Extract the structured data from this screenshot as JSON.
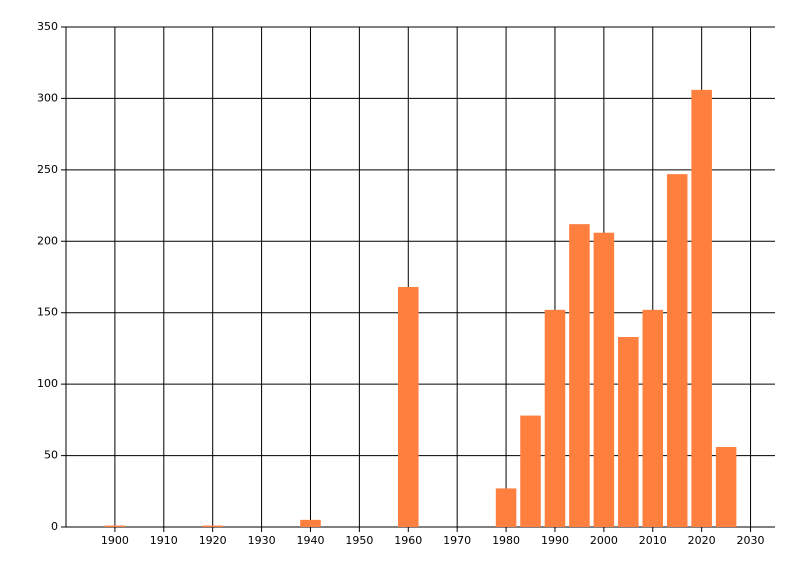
{
  "chart_data": {
    "type": "bar",
    "x": [
      1900,
      1920,
      1940,
      1960,
      1980,
      1985,
      1990,
      1995,
      2000,
      2005,
      2010,
      2015,
      2020,
      2025
    ],
    "values": [
      1,
      1,
      5,
      168,
      27,
      78,
      152,
      212,
      206,
      133,
      152,
      247,
      306,
      56
    ],
    "color": "#ff7f3f",
    "xlim": [
      1890,
      2035
    ],
    "xticks": [
      1900,
      1910,
      1920,
      1930,
      1940,
      1950,
      1960,
      1970,
      1980,
      1990,
      2000,
      2010,
      2020,
      2030
    ],
    "ylim": [
      0,
      350
    ],
    "yticks": [
      0,
      50,
      100,
      150,
      200,
      250,
      300,
      350
    ],
    "grid": true
  }
}
